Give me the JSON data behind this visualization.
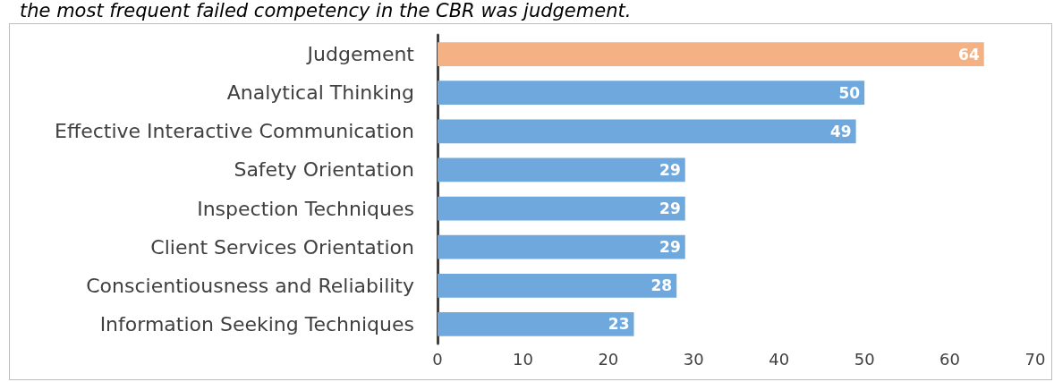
{
  "chart_data": {
    "type": "bar",
    "orientation": "horizontal",
    "title": "the most frequent failed competency in the CBR was judgement.",
    "categories": [
      "Judgement",
      "Analytical Thinking",
      "Effective Interactive Communication",
      "Safety Orientation",
      "Inspection Techniques",
      "Client Services Orientation",
      "Conscientiousness and Reliability",
      "Information Seeking Techniques"
    ],
    "values": [
      64,
      50,
      49,
      29,
      29,
      29,
      28,
      23
    ],
    "colors": [
      "#f4b183",
      "#6fa8dc",
      "#6fa8dc",
      "#6fa8dc",
      "#6fa8dc",
      "#6fa8dc",
      "#6fa8dc",
      "#6fa8dc"
    ],
    "xlim": [
      0,
      70
    ],
    "xticks": [
      0,
      10,
      20,
      30,
      40,
      50,
      60,
      70
    ],
    "grid": false,
    "data_labels": true
  }
}
